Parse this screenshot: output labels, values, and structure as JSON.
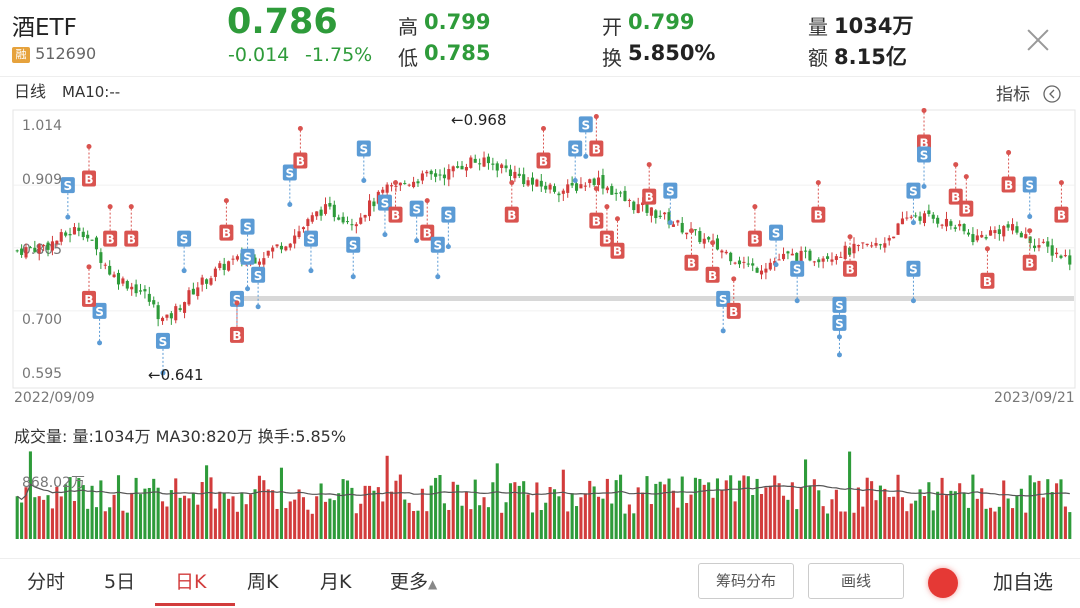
{
  "quote": {
    "name": "酒ETF",
    "rong_badge": "融",
    "code": "512690",
    "price": "0.786",
    "change": "-0.014",
    "change_pct": "-1.75%",
    "high_label": "高",
    "high": "0.799",
    "low_label": "低",
    "low": "0.785",
    "open_label": "开",
    "open": "0.799",
    "turnover_label": "换",
    "turnover": "5.850%",
    "volume_label": "量",
    "volume": "1034万",
    "amount_label": "额",
    "amount": "8.15亿"
  },
  "chart": {
    "period_label": "日线",
    "ma_label": "MA10:--",
    "indicator_label": "指标",
    "y_ticks": [
      "1.014",
      "0.909",
      "0.805",
      "0.700",
      "0.595"
    ],
    "start_date": "2022/09/09",
    "end_date": "2023/09/21",
    "max_annotation": "←0.968",
    "min_annotation": "←0.641",
    "volume_header": "成交量: 量:1034万 MA30:820万 换手:5.85%",
    "volume_tick": "868.02万",
    "buy_marker": "B",
    "sell_marker": "S"
  },
  "chart_data": {
    "type": "candlestick",
    "y_range": [
      0.595,
      1.014
    ],
    "x_range": [
      "2022/09/09",
      "2023/09/21"
    ],
    "max_point": 0.968,
    "min_point": 0.641,
    "close_anchor_points": [
      [
        0.0,
        0.8
      ],
      [
        0.03,
        0.81
      ],
      [
        0.06,
        0.84
      ],
      [
        0.09,
        0.76
      ],
      [
        0.12,
        0.73
      ],
      [
        0.14,
        0.68
      ],
      [
        0.17,
        0.74
      ],
      [
        0.2,
        0.78
      ],
      [
        0.23,
        0.79
      ],
      [
        0.26,
        0.82
      ],
      [
        0.29,
        0.87
      ],
      [
        0.32,
        0.85
      ],
      [
        0.35,
        0.9
      ],
      [
        0.38,
        0.92
      ],
      [
        0.41,
        0.93
      ],
      [
        0.43,
        0.95
      ],
      [
        0.46,
        0.94
      ],
      [
        0.49,
        0.91
      ],
      [
        0.52,
        0.9
      ],
      [
        0.55,
        0.92
      ],
      [
        0.58,
        0.88
      ],
      [
        0.61,
        0.86
      ],
      [
        0.64,
        0.83
      ],
      [
        0.67,
        0.8
      ],
      [
        0.7,
        0.77
      ],
      [
        0.73,
        0.79
      ],
      [
        0.76,
        0.79
      ],
      [
        0.79,
        0.8
      ],
      [
        0.82,
        0.81
      ],
      [
        0.85,
        0.86
      ],
      [
        0.88,
        0.85
      ],
      [
        0.91,
        0.82
      ],
      [
        0.94,
        0.84
      ],
      [
        0.97,
        0.81
      ],
      [
        1.0,
        0.786
      ]
    ],
    "volume": {
      "current": "1034万",
      "ma30": "820万",
      "turnover": "5.85%",
      "tick": "868.02万"
    }
  },
  "tabs": {
    "fenshi": "分时",
    "wuri": "5日",
    "rik": "日K",
    "zhouk": "周K",
    "yuek": "月K",
    "more": "更多"
  },
  "buttons": {
    "chips": "筹码分布",
    "draw": "画线",
    "add_watch": "加自选"
  },
  "colors": {
    "up": "#d23c3c",
    "down": "#2e9b3a",
    "buy": "#d9534f",
    "sell": "#5b9bd5"
  }
}
